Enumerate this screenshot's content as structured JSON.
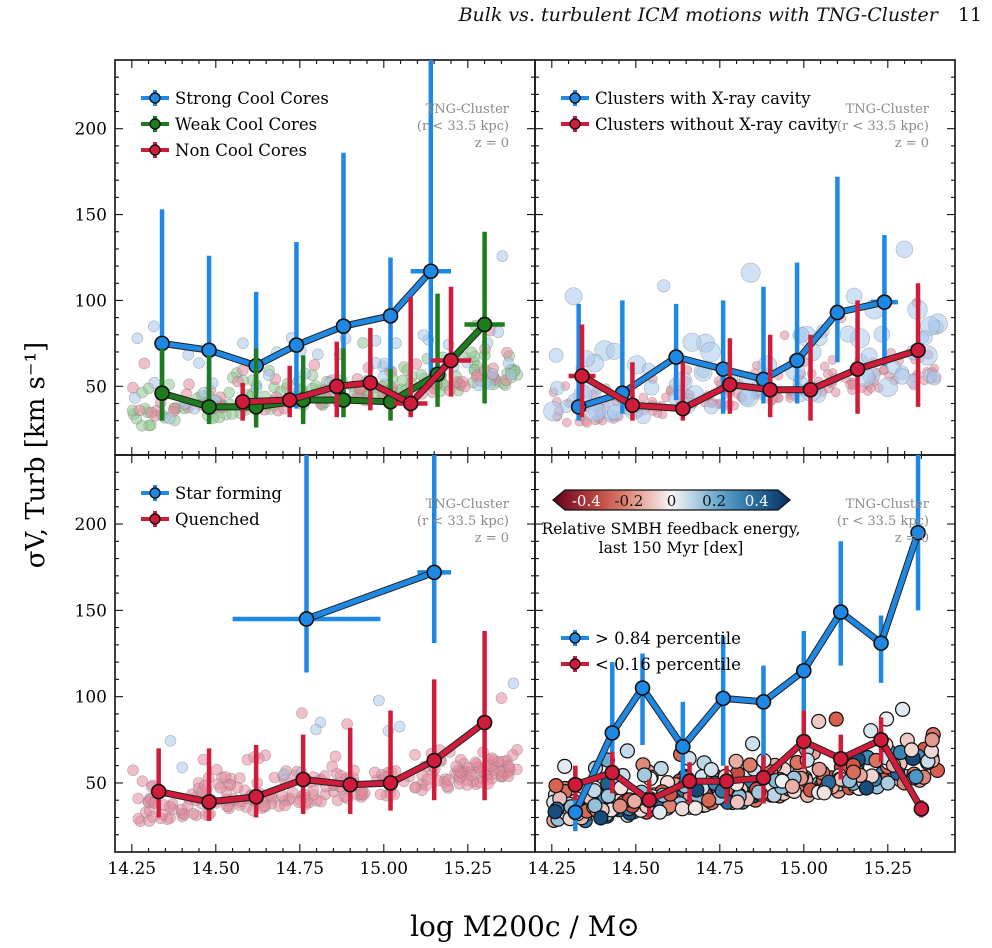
{
  "header": {
    "running_title": "Bulk vs. turbulent ICM motions with TNG-Cluster",
    "page_number": "11"
  },
  "figure": {
    "xlabel": "log  M200c / M⊙",
    "ylabel": "σV, Turb  [km s⁻¹]",
    "x_ticks": [
      "14.25",
      "14.50",
      "14.75",
      "15.00",
      "15.25"
    ],
    "y_ticks": [
      "50",
      "100",
      "150",
      "200"
    ],
    "xlim": [
      14.2,
      15.45
    ],
    "ylim": [
      10,
      240
    ],
    "colors": {
      "blue": "#1e88e5",
      "green": "#1e7b1e",
      "red": "#d01c3a",
      "scatter_blue": "#a8c8ec",
      "scatter_green": "#8fc88f",
      "scatter_red": "#e38a9c"
    },
    "colorbar": {
      "ticks": [
        "-0.4",
        "-0.2",
        "0",
        "0.2",
        "0.4"
      ],
      "label_line1": "Relative SMBH feedback energy,",
      "label_line2": "last 150 Myr [dex]",
      "cmap": "RdBu",
      "range": [
        -0.5,
        0.5
      ]
    }
  },
  "chart_data": [
    {
      "type": "line",
      "panel": "top-left",
      "annotation": [
        "TNG-Cluster",
        "(r < 33.5 kpc)",
        "z = 0"
      ],
      "legend_placement": "top-left",
      "series": [
        {
          "name": "Strong Cool Cores",
          "color": "#1e88e5",
          "x": [
            14.34,
            14.48,
            14.62,
            14.74,
            14.88,
            15.02,
            15.14
          ],
          "y": [
            75,
            71,
            62,
            74,
            85,
            91,
            117
          ],
          "err_low": [
            30,
            33,
            30,
            37,
            37,
            43,
            52
          ],
          "err_high": [
            153,
            126,
            105,
            134,
            186,
            125,
            252
          ],
          "xerr": [
            0,
            0,
            0,
            0,
            0,
            0,
            0.06
          ]
        },
        {
          "name": "Weak Cool Cores",
          "color": "#1e7b1e",
          "x": [
            14.34,
            14.48,
            14.62,
            14.76,
            14.88,
            15.02,
            15.16,
            15.3
          ],
          "y": [
            46,
            38,
            38,
            42,
            42,
            41,
            57,
            86
          ],
          "err_low": [
            30,
            28,
            26,
            28,
            32,
            30,
            38,
            40
          ],
          "err_high": [
            72,
            68,
            72,
            68,
            72,
            60,
            104,
            140
          ],
          "xerr": [
            0,
            0,
            0,
            0,
            0,
            0,
            0,
            0.06
          ]
        },
        {
          "name": "Non Cool Cores",
          "color": "#d01c3a",
          "x": [
            14.58,
            14.72,
            14.86,
            14.96,
            15.08,
            15.2
          ],
          "y": [
            41,
            42,
            50,
            52,
            40,
            65
          ],
          "err_low": [
            30,
            32,
            32,
            36,
            32,
            44
          ],
          "err_high": [
            52,
            62,
            76,
            84,
            102,
            108
          ],
          "xerr": [
            0,
            0,
            0,
            0,
            0.05,
            0.06
          ]
        }
      ]
    },
    {
      "type": "line",
      "panel": "top-right",
      "annotation": [
        "TNG-Cluster",
        "(r < 33.5 kpc)",
        "z = 0"
      ],
      "legend_placement": "top-left",
      "series": [
        {
          "name": "Clusters with X-ray cavity",
          "color": "#1e88e5",
          "x": [
            14.33,
            14.46,
            14.62,
            14.76,
            14.88,
            14.98,
            15.1,
            15.24
          ],
          "y": [
            38,
            46,
            67,
            60,
            54,
            65,
            93,
            99
          ],
          "err_low": [
            30,
            34,
            42,
            34,
            40,
            40,
            64,
            62
          ],
          "err_high": [
            98,
            100,
            98,
            100,
            108,
            122,
            172,
            138
          ],
          "xerr": [
            0,
            0,
            0,
            0,
            0,
            0,
            0,
            0.04
          ]
        },
        {
          "name": "Clusters without X-ray cavity",
          "color": "#d01c3a",
          "x": [
            14.34,
            14.49,
            14.64,
            14.78,
            14.9,
            15.02,
            15.16,
            15.34
          ],
          "y": [
            56,
            39,
            37,
            51,
            48,
            48,
            60,
            71
          ],
          "err_low": [
            32,
            30,
            30,
            34,
            32,
            30,
            34,
            38
          ],
          "err_high": [
            86,
            64,
            64,
            78,
            80,
            80,
            100,
            110
          ],
          "xerr": [
            0.04,
            0,
            0,
            0,
            0,
            0,
            0,
            0
          ]
        }
      ]
    },
    {
      "type": "line",
      "panel": "bottom-left",
      "annotation": [
        "TNG-Cluster",
        "(r < 33.5 kpc)",
        "z = 0"
      ],
      "legend_placement": "top-left",
      "series": [
        {
          "name": "Star forming",
          "color": "#1e88e5",
          "x": [
            14.77,
            15.15
          ],
          "y": [
            145,
            172
          ],
          "err_low": [
            114,
            131
          ],
          "err_high": [
            240,
            240
          ],
          "xerr": [
            0.22,
            0.05
          ]
        },
        {
          "name": "Quenched",
          "color": "#d01c3a",
          "x": [
            14.33,
            14.48,
            14.62,
            14.76,
            14.9,
            15.02,
            15.15,
            15.3
          ],
          "y": [
            45,
            39,
            42,
            52,
            49,
            50,
            63,
            85
          ],
          "err_low": [
            30,
            28,
            30,
            32,
            32,
            34,
            40,
            40
          ],
          "err_high": [
            70,
            70,
            72,
            78,
            82,
            92,
            110,
            138
          ],
          "xerr": [
            0,
            0,
            0,
            0,
            0,
            0,
            0,
            0
          ]
        }
      ]
    },
    {
      "type": "scatter",
      "panel": "bottom-right",
      "annotation": [
        "TNG-Cluster",
        "(r < 33.5 kpc)",
        "z = 0"
      ],
      "legend_placement": "center-left",
      "series": [
        {
          "name": "> 0.84 percentile",
          "color": "#1e88e5",
          "x": [
            14.32,
            14.43,
            14.52,
            14.64,
            14.76,
            14.88,
            15.0,
            15.11,
            15.23,
            15.34
          ],
          "y": [
            33,
            79,
            105,
            71,
            99,
            97,
            115,
            149,
            131,
            195
          ],
          "err_low": [
            22,
            45,
            72,
            48,
            60,
            60,
            78,
            118,
            108,
            150
          ],
          "err_high": [
            58,
            120,
            125,
            97,
            135,
            118,
            138,
            190,
            147,
            240
          ],
          "xerr": [
            0,
            0,
            0,
            0,
            0,
            0,
            0,
            0,
            0,
            0
          ]
        },
        {
          "name": "< 0.16 percentile",
          "color": "#d01c3a",
          "x": [
            14.32,
            14.43,
            14.54,
            14.66,
            14.77,
            14.88,
            15.0,
            15.11,
            15.23,
            15.35
          ],
          "y": [
            49,
            56,
            40,
            51,
            51,
            53,
            74,
            64,
            75,
            35
          ],
          "err_low": [
            40,
            44,
            30,
            38,
            38,
            38,
            58,
            52,
            62,
            30
          ],
          "err_high": [
            60,
            68,
            52,
            62,
            60,
            66,
            92,
            78,
            88,
            40
          ],
          "xerr": [
            0,
            0,
            0,
            0,
            0,
            0,
            0,
            0,
            0,
            0
          ]
        }
      ]
    }
  ]
}
